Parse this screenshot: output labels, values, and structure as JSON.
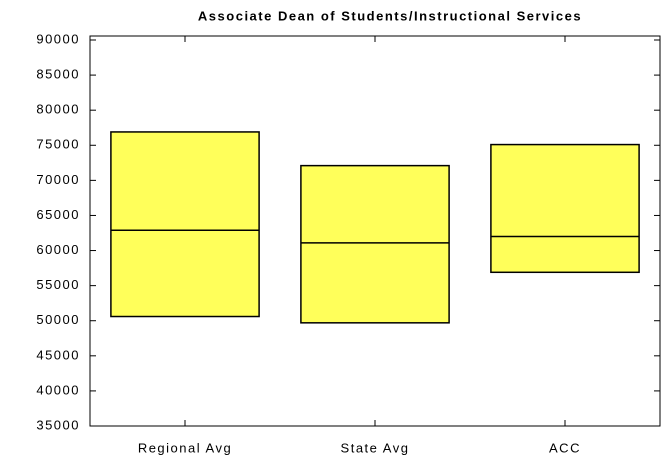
{
  "chart_data": {
    "type": "floating-box",
    "title": "Associate Dean of Students/Instructional Services",
    "categories": [
      "Regional Avg",
      "State Avg",
      "ACC"
    ],
    "low": [
      50600,
      49700,
      56900
    ],
    "median": [
      62900,
      61100,
      62000
    ],
    "high": [
      76900,
      72100,
      75100
    ],
    "color": "#ffff5a",
    "ylim": [
      35000,
      90000
    ],
    "yticks": [
      35000,
      40000,
      45000,
      50000,
      55000,
      60000,
      65000,
      70000,
      75000,
      80000,
      85000,
      90000
    ],
    "grid": false
  }
}
